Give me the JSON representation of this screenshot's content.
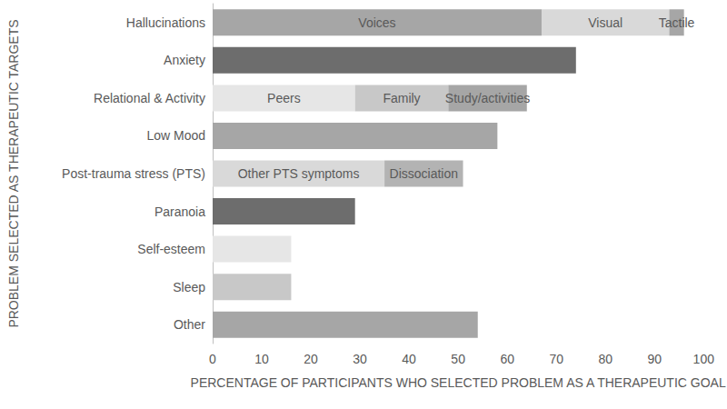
{
  "chart_data": {
    "type": "bar",
    "orientation": "horizontal",
    "stacked": true,
    "grid": false,
    "xlabel": "PERCENTAGE OF PARTICIPANTS WHO SELECTED PROBLEM AS A THERAPEUTIC GOAL",
    "ylabel": "PROBLEM SELECTED AS THERAPEUTIC TARGETS",
    "categories": [
      "Hallucinations",
      "Anxiety",
      "Relational & Activity",
      "Low Mood",
      "Post-trauma stress (PTS)",
      "Paranoia",
      "Self-esteem",
      "Sleep",
      "Other"
    ],
    "xlim": [
      0,
      100
    ],
    "xticks": [
      0,
      10,
      20,
      30,
      40,
      50,
      60,
      70,
      80,
      90,
      100
    ],
    "series": [
      {
        "name": "Voices",
        "color": "#a6a6a6",
        "values": [
          67,
          null,
          null,
          null,
          null,
          null,
          null,
          null,
          null
        ]
      },
      {
        "name": "Visual",
        "color": "#d9d9d9",
        "values": [
          26,
          null,
          null,
          null,
          null,
          null,
          null,
          null,
          null
        ]
      },
      {
        "name": "Tactile",
        "color": "#a6a6a6",
        "values": [
          3,
          null,
          null,
          null,
          null,
          null,
          null,
          null,
          null
        ]
      },
      {
        "name": "Peers",
        "color": "#e6e6e6",
        "values": [
          null,
          null,
          29,
          null,
          null,
          null,
          null,
          null,
          null
        ]
      },
      {
        "name": "Family",
        "color": "#c8c8c8",
        "values": [
          null,
          null,
          19,
          null,
          null,
          null,
          null,
          null,
          null
        ]
      },
      {
        "name": "Study/activities",
        "color": "#a6a6a6",
        "values": [
          null,
          null,
          16,
          null,
          null,
          null,
          null,
          null,
          null
        ]
      },
      {
        "name": "Other PTS symptoms",
        "color": "#d9d9d9",
        "values": [
          null,
          null,
          null,
          null,
          35,
          null,
          null,
          null,
          null
        ]
      },
      {
        "name": "Dissociation",
        "color": "#b3b3b3",
        "values": [
          null,
          null,
          null,
          null,
          16,
          null,
          null,
          null,
          null
        ]
      },
      {
        "colors": [
          null,
          "#6d6d6d",
          null,
          "#a6a6a6",
          null,
          "#6d6d6d",
          "#e6e6e6",
          "#c8c8c8",
          "#a6a6a6"
        ],
        "values": [
          null,
          74,
          null,
          58,
          null,
          29,
          16,
          16,
          54
        ]
      }
    ]
  }
}
